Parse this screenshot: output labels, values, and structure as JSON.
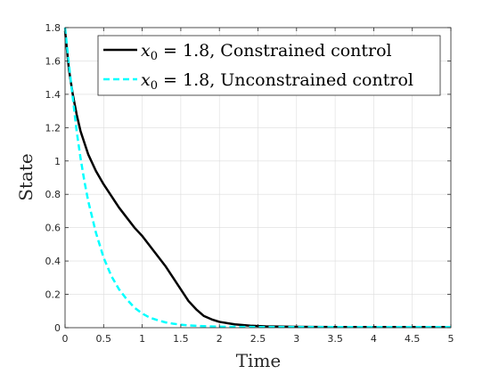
{
  "chart_data": {
    "type": "line",
    "xlabel": "Time",
    "ylabel": "State",
    "xlim": [
      0,
      5
    ],
    "ylim": [
      0,
      1.8
    ],
    "x_ticks": [
      "0",
      "0.5",
      "1",
      "1.5",
      "2",
      "2.5",
      "3",
      "3.5",
      "4",
      "4.5",
      "5"
    ],
    "y_ticks": [
      "0",
      "0.2",
      "0.4",
      "0.6",
      "0.8",
      "1",
      "1.2",
      "1.4",
      "1.6",
      "1.8"
    ],
    "grid": true,
    "legend_position": "top-right",
    "series": [
      {
        "name": "x0 = 1.8, Constrained control",
        "legend_var": "x",
        "legend_sub": "0",
        "legend_rest": " = 1.8, Constrained control",
        "color": "#000000",
        "style": "solid",
        "x": [
          0,
          0.05,
          0.1,
          0.15,
          0.2,
          0.3,
          0.4,
          0.5,
          0.6,
          0.7,
          0.8,
          0.9,
          1.0,
          1.1,
          1.2,
          1.3,
          1.4,
          1.5,
          1.6,
          1.7,
          1.8,
          1.9,
          2.0,
          2.2,
          2.4,
          2.6,
          3.0,
          3.5,
          4.0,
          4.5,
          5.0
        ],
        "y": [
          1.78,
          1.55,
          1.4,
          1.28,
          1.18,
          1.04,
          0.94,
          0.86,
          0.79,
          0.72,
          0.66,
          0.6,
          0.55,
          0.49,
          0.43,
          0.37,
          0.3,
          0.23,
          0.16,
          0.11,
          0.07,
          0.05,
          0.035,
          0.02,
          0.012,
          0.008,
          0.005,
          0.004,
          0.004,
          0.004,
          0.004
        ]
      },
      {
        "name": "x0 = 1.8, Unconstrained control",
        "legend_var": "x",
        "legend_sub": "0",
        "legend_rest": " = 1.8, Unconstrained control",
        "color": "#00FFFF",
        "style": "dashed",
        "x": [
          0,
          0.05,
          0.1,
          0.15,
          0.2,
          0.25,
          0.3,
          0.4,
          0.5,
          0.6,
          0.7,
          0.8,
          0.9,
          1.0,
          1.1,
          1.2,
          1.3,
          1.4,
          1.5,
          1.6,
          1.8,
          2.0,
          2.5,
          3.0,
          3.5,
          4.0,
          4.5,
          5.0
        ],
        "y": [
          1.8,
          1.58,
          1.38,
          1.18,
          1.02,
          0.88,
          0.76,
          0.57,
          0.42,
          0.31,
          0.23,
          0.17,
          0.12,
          0.085,
          0.06,
          0.045,
          0.032,
          0.024,
          0.018,
          0.014,
          0.009,
          0.006,
          0.004,
          0.004,
          0.004,
          0.004,
          0.004,
          0.004
        ]
      }
    ]
  }
}
